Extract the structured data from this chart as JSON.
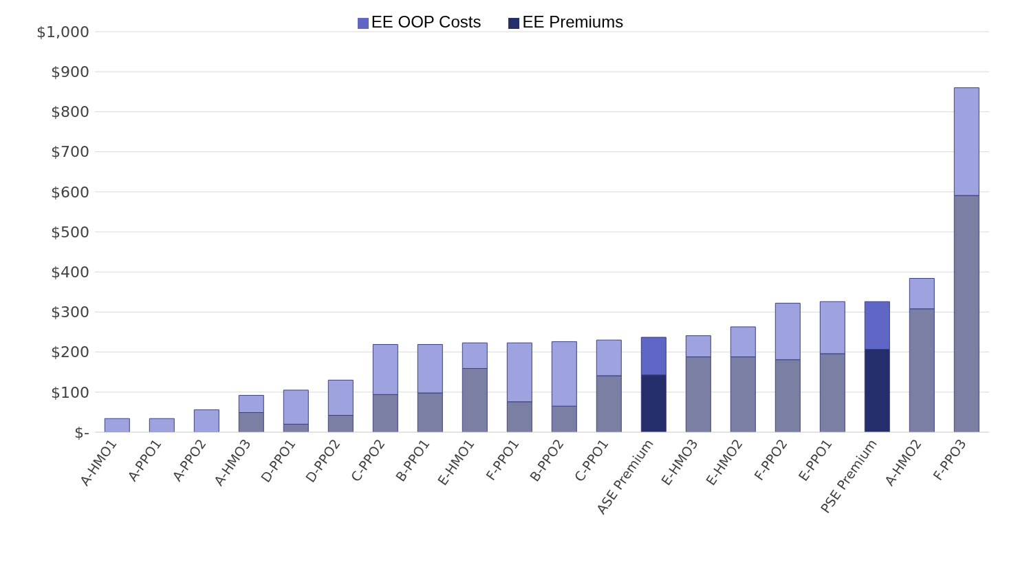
{
  "chart_data": {
    "type": "bar",
    "stacked": true,
    "legend": "top",
    "grid": "y",
    "categories": [
      "A-HMO1",
      "A-PPO1",
      "A-PPO2",
      "A-HMO3",
      "D-PPO1",
      "D-PPO2",
      "C-PPO2",
      "B-PPO1",
      "E-HMO1",
      "F-PPO1",
      "B-PPO2",
      "C-PPO1",
      "ASE Premium",
      "E-HMO3",
      "E-HMO2",
      "F-PPO2",
      "E-PPO1",
      "PSE Premium",
      "A-HMO2",
      "F-PPO3"
    ],
    "series": [
      {
        "name": "EE Premiums",
        "color": "#262d6b",
        "colors": [
          "#7b7fa3",
          "#7b7fa3",
          "#7b7fa3",
          "#7b7fa3",
          "#7b7fa3",
          "#7b7fa3",
          "#7b7fa3",
          "#7b7fa3",
          "#7b7fa3",
          "#7b7fa3",
          "#7b7fa3",
          "#7b7fa3",
          "#262d6b",
          "#7b7fa3",
          "#7b7fa3",
          "#7b7fa3",
          "#7b7fa3",
          "#262d6b",
          "#7b7fa3",
          "#7b7fa3"
        ],
        "values": [
          0,
          0,
          0,
          49,
          20,
          42,
          94,
          98,
          159,
          76,
          65,
          141,
          143,
          188,
          188,
          181,
          196,
          207,
          308,
          591
        ]
      },
      {
        "name": "EE OOP Costs",
        "color": "#5f66c6",
        "colors": [
          "#9ea3e0",
          "#9ea3e0",
          "#9ea3e0",
          "#9ea3e0",
          "#9ea3e0",
          "#9ea3e0",
          "#9ea3e0",
          "#9ea3e0",
          "#9ea3e0",
          "#9ea3e0",
          "#9ea3e0",
          "#9ea3e0",
          "#5f66c6",
          "#9ea3e0",
          "#9ea3e0",
          "#9ea3e0",
          "#9ea3e0",
          "#5f66c6",
          "#9ea3e0",
          "#9ea3e0"
        ],
        "values": [
          34,
          34,
          56,
          43,
          85,
          88,
          125,
          121,
          64,
          147,
          161,
          89,
          94,
          53,
          75,
          141,
          130,
          119,
          76,
          269
        ]
      }
    ],
    "ylim": [
      0,
      1000
    ],
    "yticks": [
      {
        "value": 0,
        "label": "$-"
      },
      {
        "value": 100,
        "label": "$100"
      },
      {
        "value": 200,
        "label": "$200"
      },
      {
        "value": 300,
        "label": "$300"
      },
      {
        "value": 400,
        "label": "$400"
      },
      {
        "value": 500,
        "label": "$500"
      },
      {
        "value": 600,
        "label": "$600"
      },
      {
        "value": 700,
        "label": "$700"
      },
      {
        "value": 800,
        "label": "$800"
      },
      {
        "value": 900,
        "label": "$900"
      },
      {
        "value": 1000,
        "label": "$1,000"
      }
    ]
  }
}
